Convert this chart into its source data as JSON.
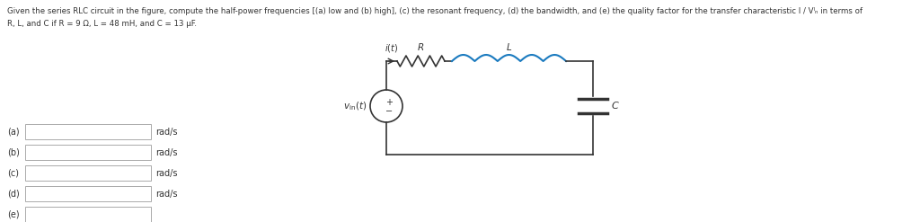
{
  "title_line1": "Given the series RLC circuit in the figure, compute the half-power frequencies [(a) low and (b) high], (c) the resonant frequency, (d) the bandwidth, and (e) the quality factor for the transfer characteristic I / Vᴵₙ in terms of",
  "title_line2": "R, L, and C if R = 9 Ω, L = 48 mH, and C = 13 μF.",
  "labels_left": [
    "(a)",
    "(b)",
    "(c)",
    "(d)",
    "(e)"
  ],
  "units": [
    "rad/s",
    "rad/s",
    "rad/s",
    "rad/s",
    ""
  ],
  "background": "#ffffff",
  "resistor_color": "#333333",
  "inductor_color": "#1a7abf",
  "wire_color": "#333333",
  "text_color": "#333333"
}
